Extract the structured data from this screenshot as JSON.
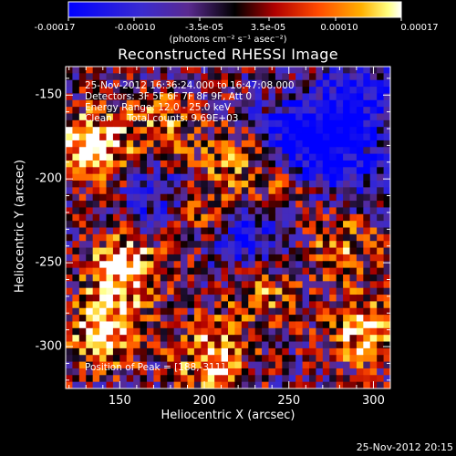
{
  "colorbar": {
    "ticks": [
      "-0.00017",
      "-0.00010",
      "-3.5e-05",
      "3.5e-05",
      "0.00010",
      "0.00017"
    ],
    "units": "(photons cm⁻² s⁻¹ asec⁻²)"
  },
  "info": {
    "line1": "25-Nov-2012 16:36:24.000 to 16:47:08.000",
    "line2": "Detectors: 3F 5F 6F 7F 8F 9F, Att 0",
    "line3": "Energy Range: 12.0 - 25.0 keV",
    "line4": "Clean     Total counts: 9.69E+03",
    "peak": "Position of Peak = [188,-311]"
  },
  "timestamp": "25-Nov-2012 20:15",
  "chart_data": {
    "type": "heatmap",
    "title": "Reconstructed RHESSI Image",
    "xlabel": "Heliocentric X (arcsec)",
    "ylabel": "Heliocentric Y (arcsec)",
    "xlim": [
      118,
      310
    ],
    "ylim": [
      -325,
      -133
    ],
    "xticks": [
      "150",
      "200",
      "250",
      "300"
    ],
    "xtick_values": [
      150,
      200,
      250,
      300
    ],
    "yticks": [
      "-150",
      "-200",
      "-250",
      "-300"
    ],
    "ytick_values": [
      -150,
      -200,
      -250,
      -300
    ],
    "colormap": "RHESSI (blue → purple → black → red → orange → yellow → white)",
    "vmin": -0.00017,
    "vmax": 0.00017,
    "peak_position": [
      188,
      -311
    ]
  }
}
